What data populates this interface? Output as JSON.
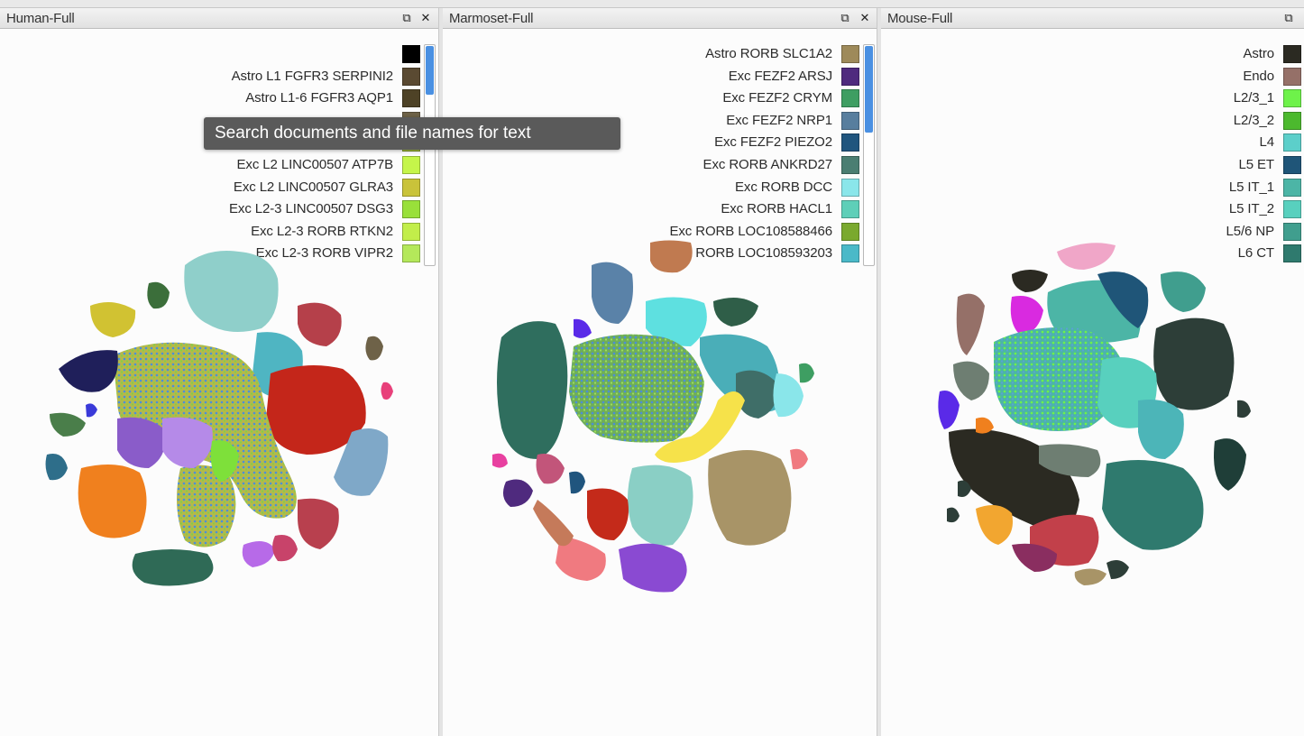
{
  "panels": [
    {
      "id": "human",
      "title": "Human-Full",
      "restore_icon": "⧉",
      "close_icon": "✕",
      "legend": [
        {
          "label": "",
          "color": "#000000"
        },
        {
          "label": "Astro L1 FGFR3 SERPINI2",
          "color": "#5a4a32"
        },
        {
          "label": "Astro L1-6 FGFR3 AQP1",
          "color": "#4e4226"
        },
        {
          "label": "",
          "color": "#6e6248"
        },
        {
          "label": "",
          "color": "#a6c23a"
        },
        {
          "label": "Exc L2 LINC00507 ATP7B",
          "color": "#c5f54a"
        },
        {
          "label": "Exc L2 LINC00507 GLRA3",
          "color": "#c9c33a"
        },
        {
          "label": "Exc L2-3 LINC00507 DSG3",
          "color": "#99e03a"
        },
        {
          "label": "Exc L2-3 RORB RTKN2",
          "color": "#c2ee4a"
        },
        {
          "label": "Exc L2-3 RORB VIPR2",
          "color": "#b4e85a"
        }
      ]
    },
    {
      "id": "marmoset",
      "title": "Marmoset-Full",
      "restore_icon": "⧉",
      "close_icon": "✕",
      "legend": [
        {
          "label": "Astro RORB SLC1A2",
          "color": "#9e8a5a"
        },
        {
          "label": "Exc FEZF2 ARSJ",
          "color": "#4f2a7e"
        },
        {
          "label": "Exc FEZF2 CRYM",
          "color": "#3e9e62"
        },
        {
          "label": "Exc FEZF2 NRP1",
          "color": "#587e9e"
        },
        {
          "label": "Exc FEZF2 PIEZO2",
          "color": "#20557e"
        },
        {
          "label": "Exc RORB ANKRD27",
          "color": "#4a7e72"
        },
        {
          "label": "Exc RORB DCC",
          "color": "#8ae6ea"
        },
        {
          "label": "Exc RORB HACL1",
          "color": "#5ecfb8"
        },
        {
          "label": "Exc RORB LOC108588466",
          "color": "#7aa92e"
        },
        {
          "label": "Exc RORB LOC108593203",
          "color": "#4ab9c8"
        }
      ]
    },
    {
      "id": "mouse",
      "title": "Mouse-Full",
      "restore_icon": "⧉",
      "close_icon": "✕",
      "legend": [
        {
          "label": "Astro",
          "color": "#2b2a22"
        },
        {
          "label": "Endo",
          "color": "#957068"
        },
        {
          "label": "L2/3_1",
          "color": "#6ef24a"
        },
        {
          "label": "L2/3_2",
          "color": "#4cb92e"
        },
        {
          "label": "L4",
          "color": "#5ccfca"
        },
        {
          "label": "L5 ET",
          "color": "#1f5578"
        },
        {
          "label": "L5 IT_1",
          "color": "#4cb5a6"
        },
        {
          "label": "L5 IT_2",
          "color": "#58d0be"
        },
        {
          "label": "L5/6 NP",
          "color": "#409e8e"
        },
        {
          "label": "L6 CT",
          "color": "#2f7a6e"
        }
      ]
    }
  ],
  "tooltip": {
    "text": "Search documents and file names for text"
  }
}
